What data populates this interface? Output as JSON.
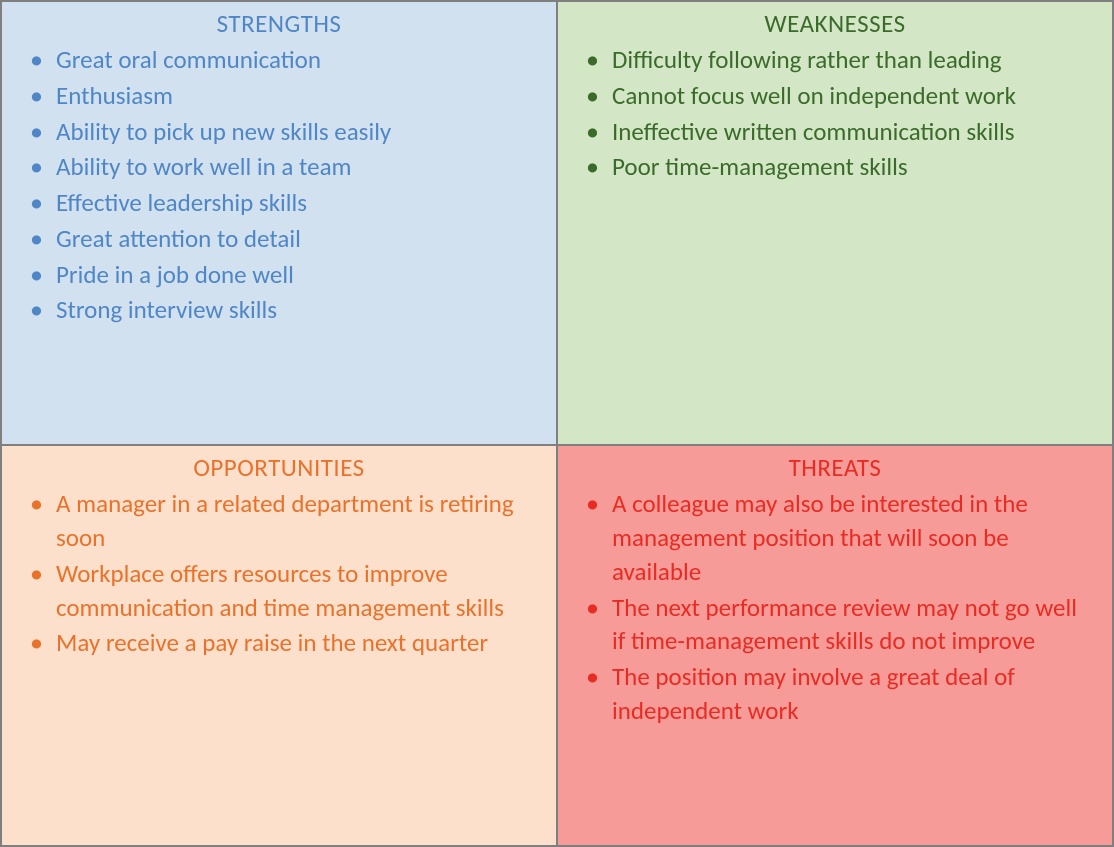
{
  "swot": {
    "type": "infographic",
    "grid": "2x2",
    "border_color": "#7f7f7f",
    "font_family": "Calibri",
    "title_fontsize": 25,
    "item_fontsize": 25,
    "quadrants": [
      {
        "key": "strengths",
        "title": "STRENGTHS",
        "bg_color": "#d2e1f0",
        "text_color": "#4f86c6",
        "bullet_color": "#4f86c6",
        "items": [
          "Great oral communication",
          "Enthusiasm",
          "Ability to pick up new skills easily",
          "Ability to work well in a team",
          "Effective leadership skills",
          "Great attention to detail",
          "Pride in a job done well",
          "Strong interview skills"
        ]
      },
      {
        "key": "weaknesses",
        "title": "WEAKNESSES",
        "bg_color": "#d3e7c6",
        "text_color": "#3b6b2a",
        "bullet_color": "#3b6b2a",
        "items": [
          "Difficulty following rather than leading",
          "Cannot focus well on independent work",
          "Ineffective written communication skills",
          "Poor time-management skills"
        ]
      },
      {
        "key": "opportunities",
        "title": "OPPORTUNITIES",
        "bg_color": "#fce0cc",
        "text_color": "#e9722b",
        "bullet_color": "#e9722b",
        "items": [
          "A manager in a related department is retiring soon",
          "Workplace offers resources to improve communication and time management skills",
          "May receive a pay raise in the next quarter"
        ]
      },
      {
        "key": "threats",
        "title": "THREATS",
        "bg_color": "#f69b98",
        "text_color": "#e82c23",
        "bullet_color": "#e82c23",
        "items": [
          "A colleague may also be interested in the management position that will soon be available",
          "The next performance review may not go well if time-management skills do not improve",
          "The position may involve a great deal of independent work"
        ]
      }
    ]
  }
}
